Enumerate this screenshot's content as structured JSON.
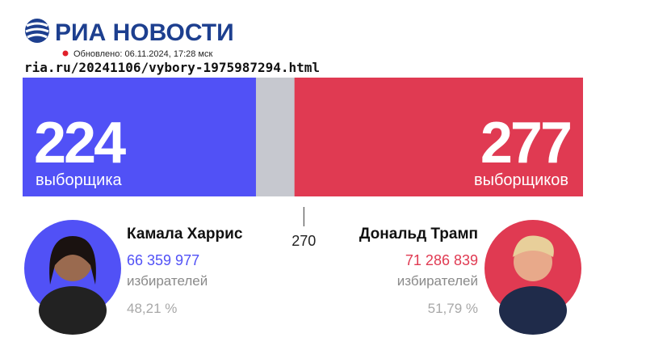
{
  "header": {
    "logo": "РИА НОВОСТИ",
    "updated": "Обновлено: 06.11.2024, 17:28 мск",
    "url": "ria.ru/20241106/vybory-1975987294.html"
  },
  "chart_data": {
    "type": "bar",
    "xlim": [
      0,
      538
    ],
    "threshold": 270,
    "remainder_color": "#c6c8cf",
    "series": [
      {
        "name": "Камала Харрис",
        "color": "#5151f6",
        "values": [
          224
        ],
        "unit": "выборщика",
        "votes": 66359977,
        "votes_label": "66 359 977",
        "votes_unit": "избирателей",
        "share": 48.21,
        "share_label": "48,21 %"
      },
      {
        "name": "Дональд Трамп",
        "color": "#e03a52",
        "values": [
          277
        ],
        "unit": "выборщиков",
        "votes": 71286839,
        "votes_label": "71 286 839",
        "votes_unit": "избирателей",
        "share": 51.79,
        "share_label": "51,79 %"
      }
    ]
  }
}
